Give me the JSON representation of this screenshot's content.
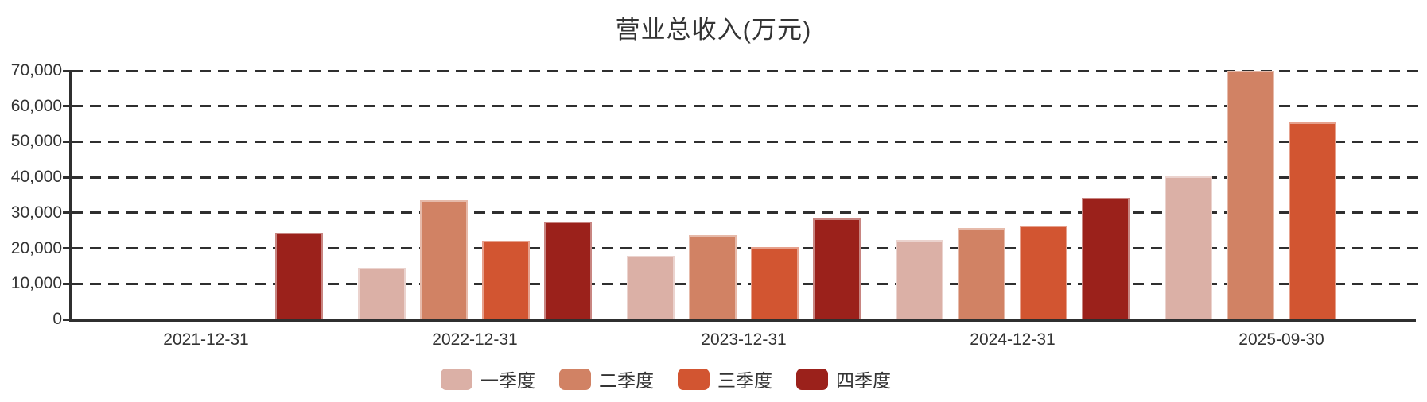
{
  "chart_data": {
    "type": "bar",
    "title": "营业总收入(万元)",
    "categories": [
      "2021-12-31",
      "2022-12-31",
      "2023-12-31",
      "2024-12-31",
      "2025-09-30"
    ],
    "series": [
      {
        "name": "一季度",
        "color": "#dbb0a6",
        "values": [
          null,
          14500,
          17800,
          22400,
          40300
        ]
      },
      {
        "name": "二季度",
        "color": "#d18264",
        "values": [
          null,
          33500,
          23700,
          25700,
          69900
        ]
      },
      {
        "name": "三季度",
        "color": "#d25531",
        "values": [
          null,
          22200,
          20400,
          26400,
          55400
        ]
      },
      {
        "name": "四季度",
        "color": "#9b211b",
        "values": [
          24400,
          27600,
          28400,
          34200,
          null
        ]
      }
    ],
    "xlabel": "",
    "ylabel": "",
    "ylim": [
      0,
      70000
    ],
    "ytick_interval": 10000,
    "yticklabels": [
      "0",
      "10,000",
      "20,000",
      "30,000",
      "40,000",
      "50,000",
      "60,000",
      "70,000"
    ],
    "grid": "horizontal-dashed",
    "legend_position": "bottom",
    "axis_color": "#2f2f2f",
    "text_color": "#333333"
  }
}
